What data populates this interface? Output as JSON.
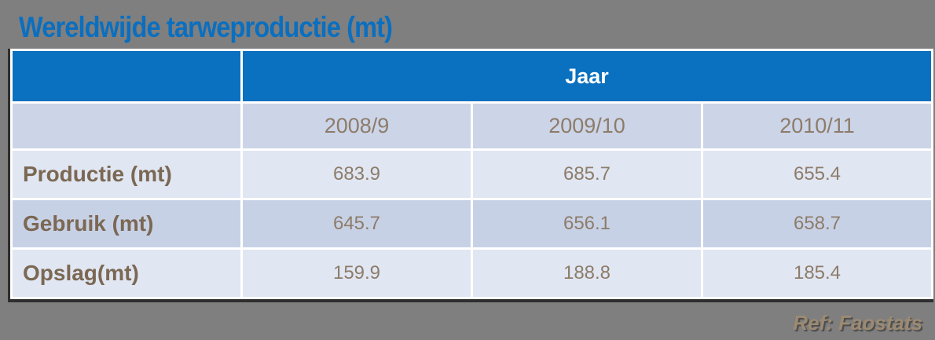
{
  "slide": {
    "title": "Wereldwijde tarweproductie (mt)",
    "reference": "Ref: Faostats"
  },
  "table": {
    "corner_label": "",
    "year_header": "Jaar",
    "columns": [
      "2008/9",
      "2009/10",
      "2010/11"
    ],
    "rows": [
      {
        "label": "Productie (mt)",
        "values": [
          "683.9",
          "685.7",
          "655.4"
        ]
      },
      {
        "label": "Gebruik (mt)",
        "values": [
          "645.7",
          "656.1",
          "658.7"
        ]
      },
      {
        "label": "Opslag(mt)",
        "values": [
          "159.9",
          "188.8",
          "185.4"
        ]
      }
    ]
  },
  "colors": {
    "background": "#7f7f7f",
    "header_blue": "#0a70c0",
    "title_blue": "#0a6fc0",
    "year_row_bg": "#ccd4e8",
    "row_light_bg": "#e0e6f2",
    "row_dark_bg": "#c7d1e6",
    "label_text": "#7b6853",
    "value_text": "#8d7c69",
    "reference_text": "#9c8a72"
  },
  "chart_data": {
    "type": "table",
    "title": "Wereldwijde tarweproductie (mt)",
    "column_group_label": "Jaar",
    "categories": [
      "2008/9",
      "2009/10",
      "2010/11"
    ],
    "series": [
      {
        "name": "Productie (mt)",
        "values": [
          683.9,
          685.7,
          655.4
        ]
      },
      {
        "name": "Gebruik (mt)",
        "values": [
          645.7,
          656.1,
          658.7
        ]
      },
      {
        "name": "Opslag(mt)",
        "values": [
          159.9,
          188.8,
          185.4
        ]
      }
    ],
    "annotations": [
      "Ref: Faostats"
    ]
  }
}
